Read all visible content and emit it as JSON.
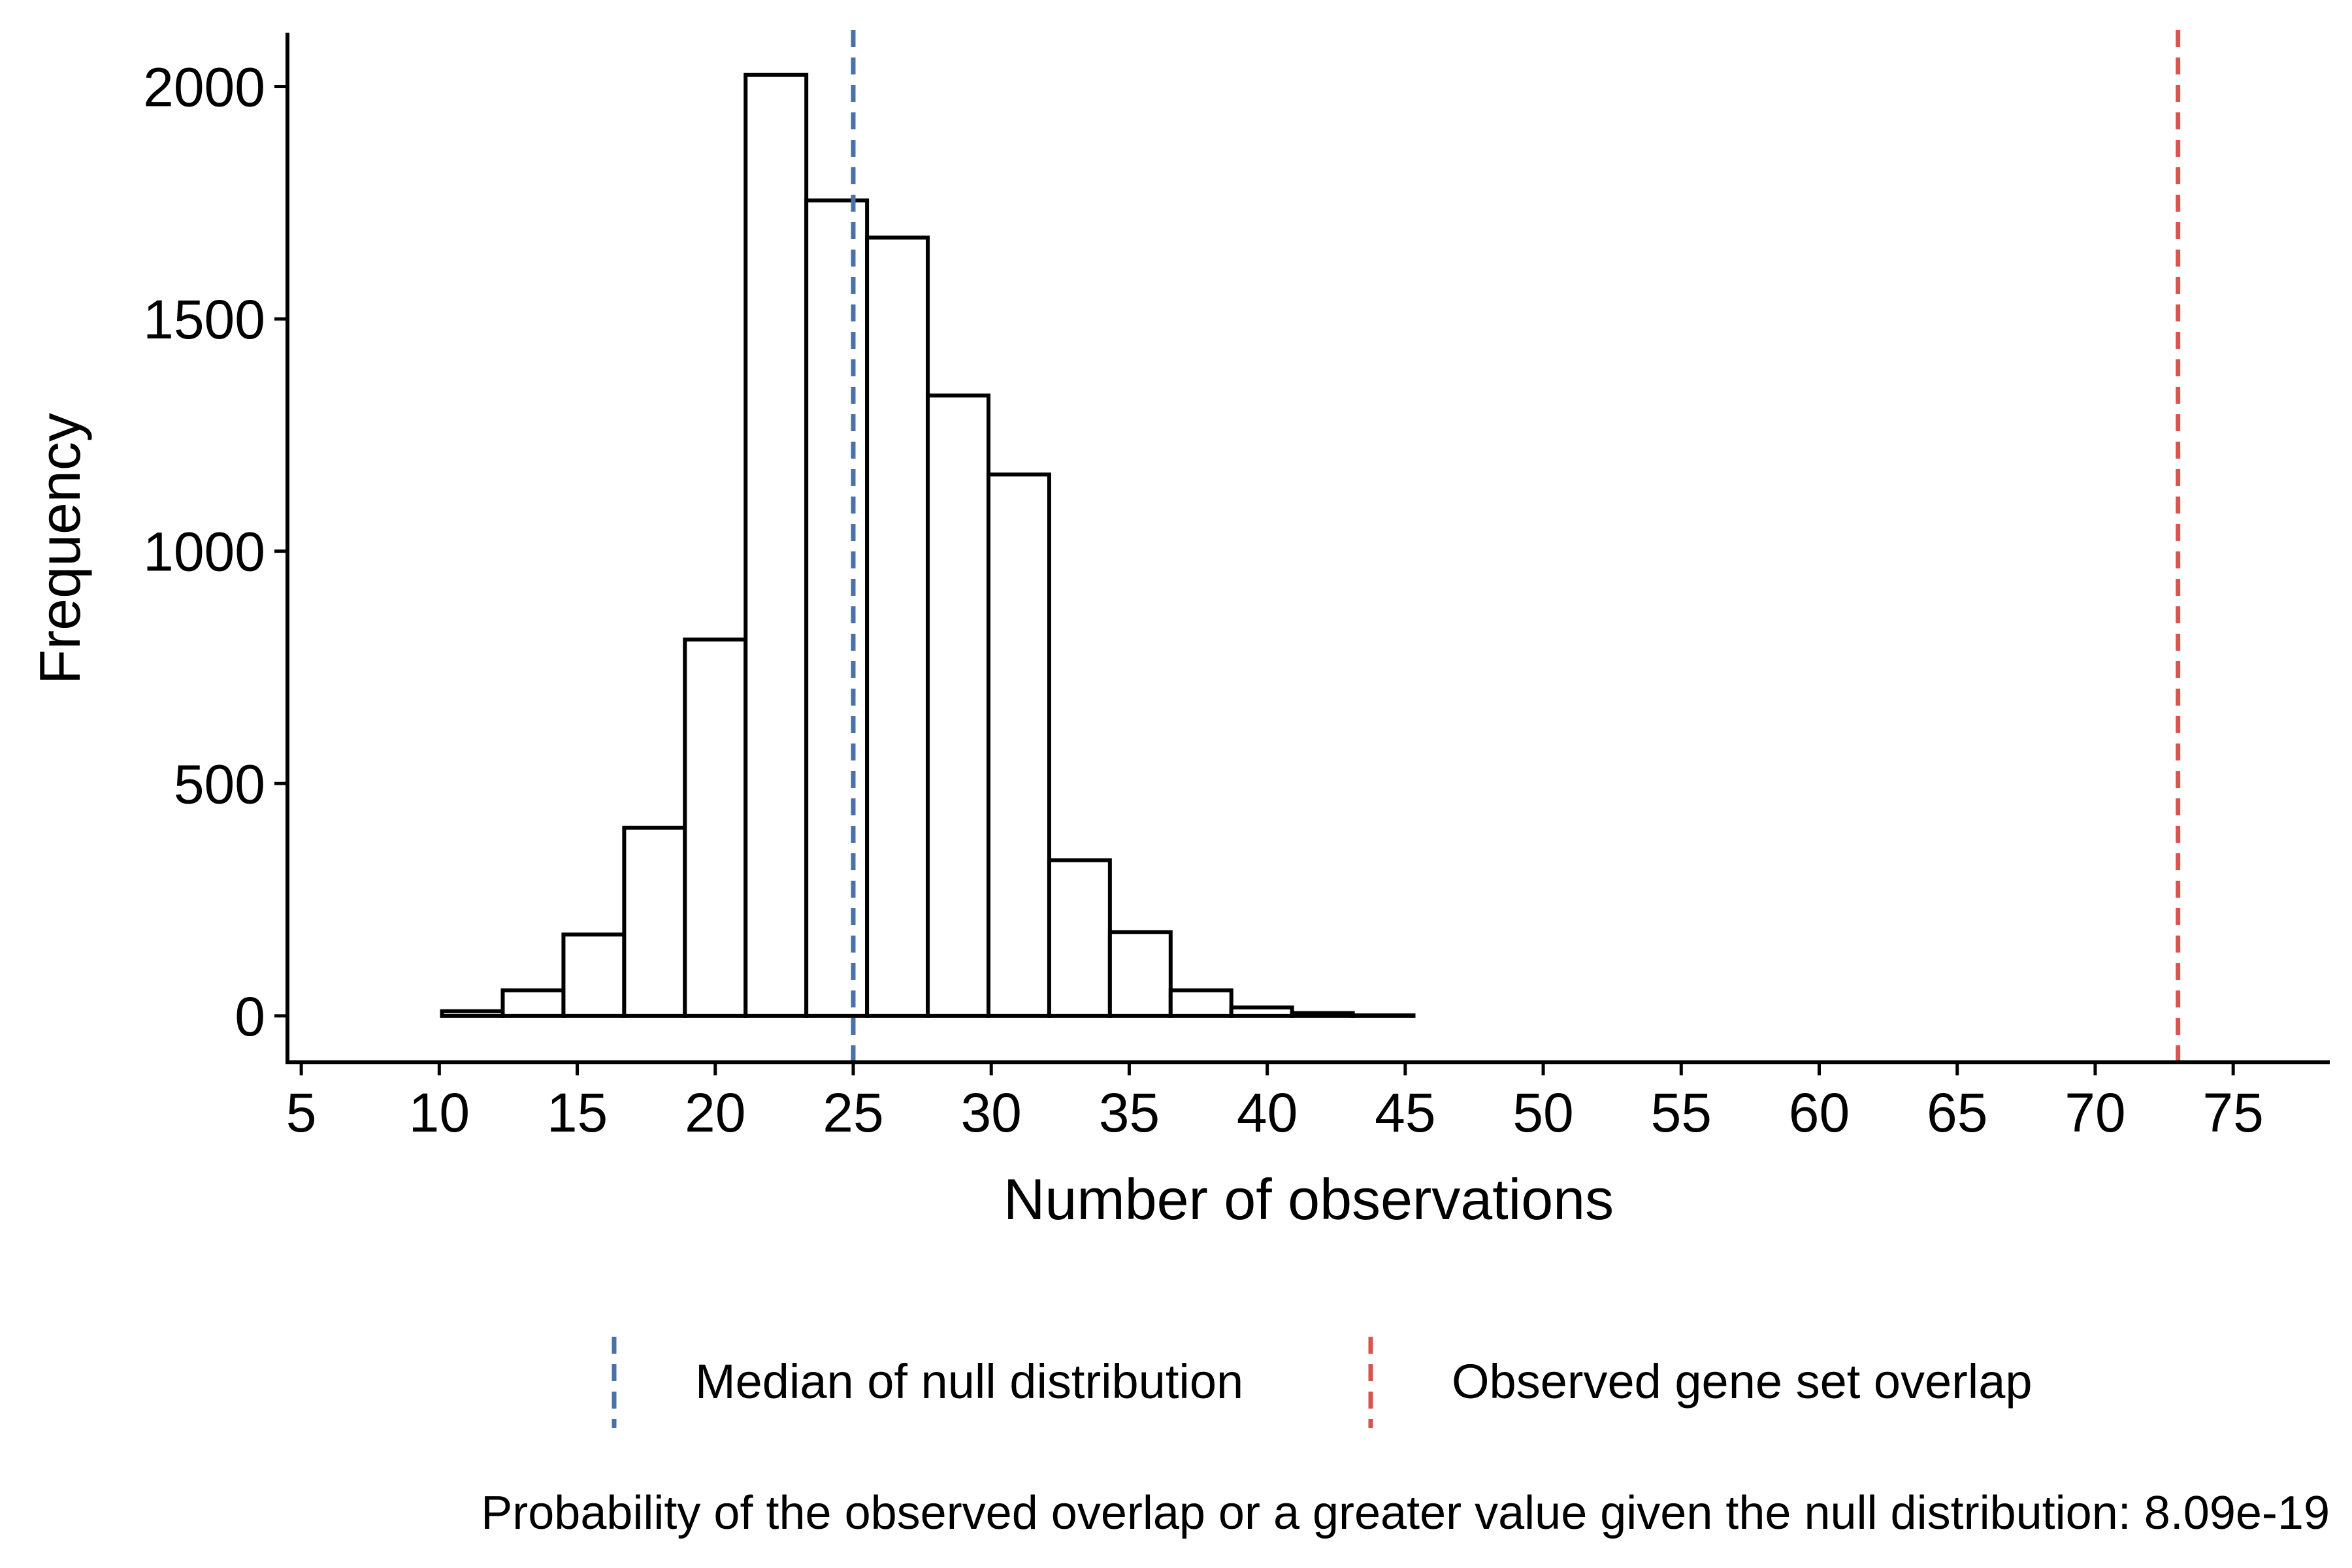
{
  "chart_data": {
    "type": "bar",
    "subtype": "histogram",
    "xlabel": "Number of observations",
    "ylabel": "Frequency",
    "x_ticks": [
      5,
      10,
      15,
      20,
      25,
      30,
      35,
      40,
      45,
      50,
      55,
      60,
      65,
      70,
      75
    ],
    "y_ticks": [
      0,
      500,
      1000,
      1500,
      2000
    ],
    "xlim": [
      4.5,
      78.5
    ],
    "ylim": [
      -100,
      2130
    ],
    "bin_width": 2.2,
    "bins": [
      {
        "x0": 7.9,
        "x1": 10.1,
        "count": 0
      },
      {
        "x0": 10.1,
        "x1": 12.3,
        "count": 10
      },
      {
        "x0": 12.3,
        "x1": 14.5,
        "count": 55
      },
      {
        "x0": 14.5,
        "x1": 16.7,
        "count": 175
      },
      {
        "x0": 16.7,
        "x1": 18.9,
        "count": 405
      },
      {
        "x0": 18.9,
        "x1": 21.1,
        "count": 810
      },
      {
        "x0": 21.1,
        "x1": 23.3,
        "count": 2025
      },
      {
        "x0": 23.3,
        "x1": 25.5,
        "count": 1755
      },
      {
        "x0": 25.5,
        "x1": 27.7,
        "count": 1675
      },
      {
        "x0": 27.7,
        "x1": 29.9,
        "count": 1335
      },
      {
        "x0": 29.9,
        "x1": 32.1,
        "count": 1165
      },
      {
        "x0": 32.1,
        "x1": 34.3,
        "count": 335
      },
      {
        "x0": 34.3,
        "x1": 36.5,
        "count": 180
      },
      {
        "x0": 36.5,
        "x1": 38.7,
        "count": 55
      },
      {
        "x0": 38.7,
        "x1": 40.9,
        "count": 18
      },
      {
        "x0": 40.9,
        "x1": 43.1,
        "count": 6
      },
      {
        "x0": 43.1,
        "x1": 45.3,
        "count": 1
      },
      {
        "x0": 45.3,
        "x1": 47.5,
        "count": 0
      },
      {
        "x0": 47.5,
        "x1": 49.7,
        "count": 0
      },
      {
        "x0": 49.7,
        "x1": 51.9,
        "count": 0
      },
      {
        "x0": 51.9,
        "x1": 54.1,
        "count": 0
      },
      {
        "x0": 54.1,
        "x1": 56.3,
        "count": 0
      },
      {
        "x0": 56.3,
        "x1": 58.5,
        "count": 0
      },
      {
        "x0": 58.5,
        "x1": 60.7,
        "count": 0
      },
      {
        "x0": 60.7,
        "x1": 62.9,
        "count": 0
      },
      {
        "x0": 62.9,
        "x1": 65.1,
        "count": 0
      },
      {
        "x0": 65.1,
        "x1": 67.3,
        "count": 0
      },
      {
        "x0": 67.3,
        "x1": 69.5,
        "count": 0
      },
      {
        "x0": 69.5,
        "x1": 71.7,
        "count": 0
      },
      {
        "x0": 71.7,
        "x1": 73.9,
        "count": 0
      }
    ],
    "reference_lines": [
      {
        "name": "Median of null distribution",
        "x": 25,
        "color": "#4a72a8",
        "style": "dashed"
      },
      {
        "name": "Observed gene set overlap",
        "x": 73,
        "color": "#d9534f",
        "style": "dashed"
      }
    ],
    "legend_position": "bottom",
    "caption": "Probability of the observed overlap or a greater value given the null distribution: 8.09e-19",
    "grid": false
  }
}
